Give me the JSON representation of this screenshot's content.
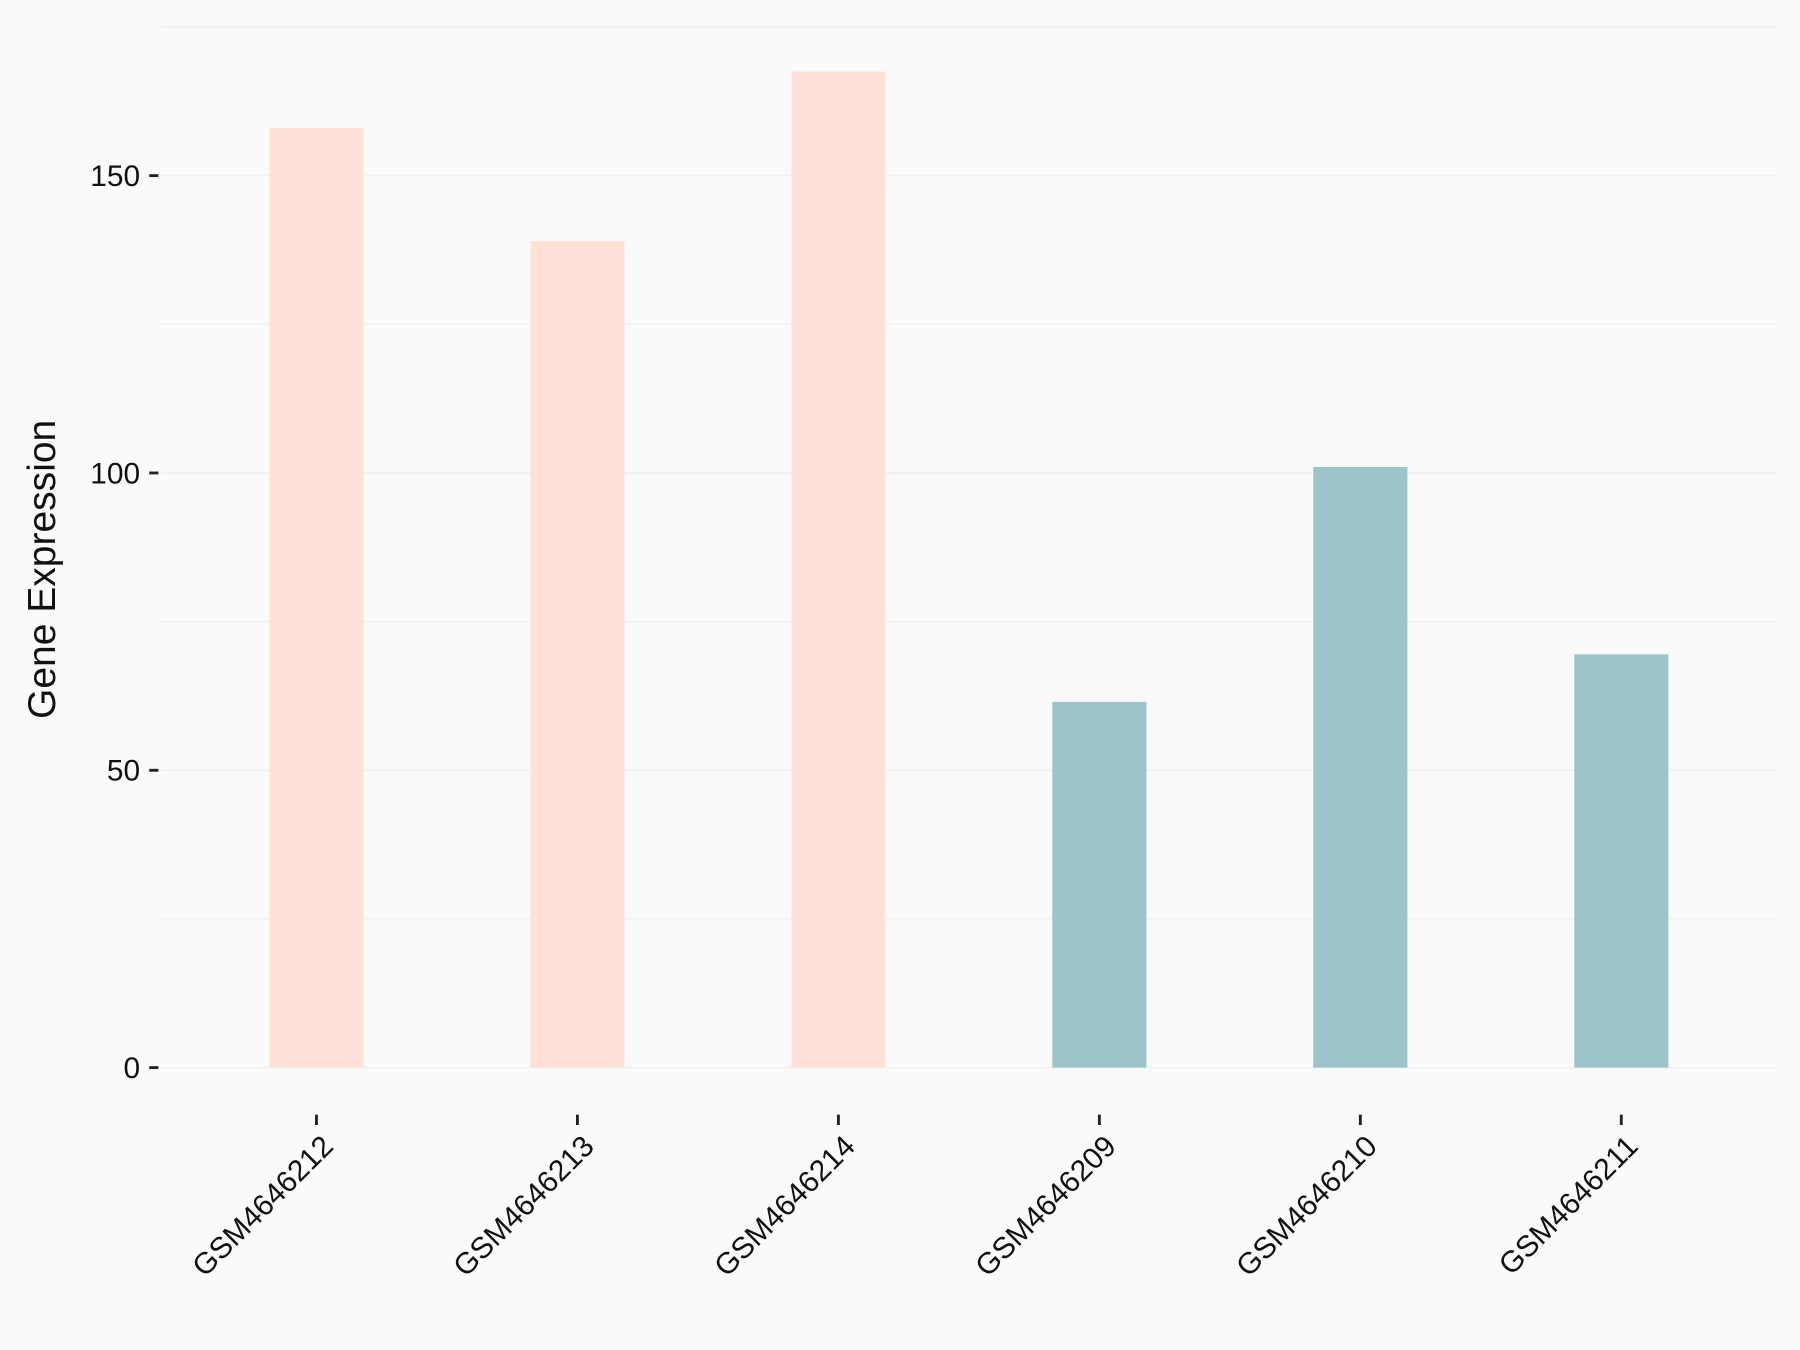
{
  "chart_data": {
    "type": "bar",
    "y_label": "Gene Expression",
    "categories": [
      "GSM4646212",
      "GSM4646213",
      "GSM4646214",
      "GSM4646209",
      "GSM4646210",
      "GSM4646211"
    ],
    "values": [
      158,
      139,
      167.5,
      61.5,
      101,
      69.5
    ],
    "colors": [
      "#ffe1d7",
      "#ffe1d7",
      "#ffe1d7",
      "#9dc4c8",
      "#9dc4c8",
      "#9dc4c8"
    ],
    "ylim": [
      -6,
      178
    ],
    "yticks": [
      0,
      50,
      100,
      150
    ],
    "yminor": [
      25,
      75,
      125,
      175
    ],
    "grid": true
  }
}
